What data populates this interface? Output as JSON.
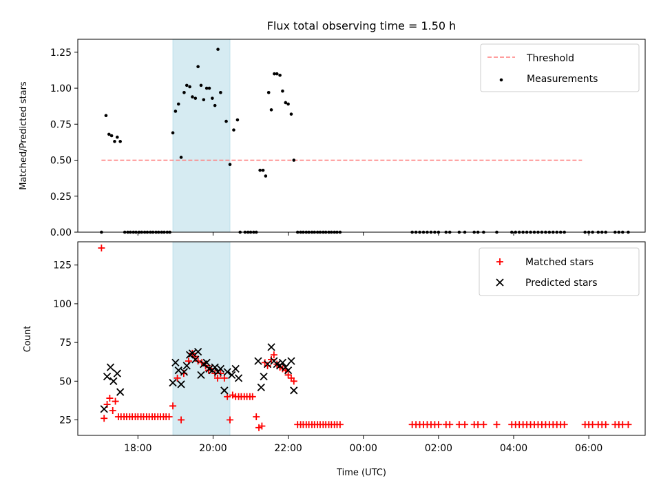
{
  "chart_data": [
    {
      "type": "scatter",
      "title": "Flux total observing time = 1.50 h",
      "xlabel": "",
      "ylabel": "Matched/Predicted stars",
      "x_range_hours": [
        16.4,
        31.5
      ],
      "ylim": [
        0,
        1.34
      ],
      "yticks": [
        0.0,
        0.25,
        0.5,
        0.75,
        1.0,
        1.25
      ],
      "ytick_labels": [
        "0.00",
        "0.25",
        "0.50",
        "0.75",
        "1.00",
        "1.25"
      ],
      "highlight_span_hours": [
        18.93,
        20.45
      ],
      "highlight_color": "#add8e6",
      "threshold": {
        "name": "Threshold",
        "value": 0.5,
        "x_from": 17.03,
        "x_to": 29.82,
        "color": "#ff7f7f",
        "style": "dashed"
      },
      "legend": {
        "placement": "upper right",
        "entries": [
          "Threshold",
          "Measurements"
        ]
      },
      "series": [
        {
          "name": "Measurements",
          "color": "#000000",
          "x": [
            17.03,
            17.15,
            17.23,
            17.3,
            17.38,
            17.45,
            17.53,
            17.65,
            17.73,
            17.8,
            17.88,
            17.95,
            18.03,
            18.1,
            18.18,
            18.25,
            18.33,
            18.4,
            18.48,
            18.55,
            18.63,
            18.7,
            18.78,
            18.85,
            18.93,
            19.0,
            19.08,
            19.15,
            19.23,
            19.3,
            19.38,
            19.45,
            19.53,
            19.6,
            19.68,
            19.75,
            19.83,
            19.9,
            19.98,
            20.05,
            20.13,
            20.2,
            20.35,
            20.45,
            20.55,
            20.65,
            20.72,
            20.85,
            20.93,
            21.0,
            21.08,
            21.15,
            21.25,
            21.33,
            21.4,
            21.48,
            21.55,
            21.63,
            21.7,
            21.78,
            21.85,
            21.93,
            22.0,
            22.08,
            22.15,
            22.25,
            22.33,
            22.4,
            22.48,
            22.55,
            22.63,
            22.7,
            22.78,
            22.85,
            22.93,
            23.0,
            23.08,
            23.15,
            23.23,
            23.3,
            23.38,
            25.3,
            25.4,
            25.5,
            25.6,
            25.7,
            25.8,
            25.9,
            26.0,
            26.2,
            26.3,
            26.55,
            26.7,
            26.95,
            27.05,
            27.2,
            27.55,
            27.95,
            28.05,
            28.15,
            28.25,
            28.35,
            28.45,
            28.55,
            28.65,
            28.75,
            28.85,
            28.95,
            29.05,
            29.15,
            29.25,
            29.35,
            29.9,
            30.0,
            30.1,
            30.25,
            30.35,
            30.45,
            30.7,
            30.8,
            30.9,
            31.05
          ],
          "y": [
            0.0,
            0.81,
            0.68,
            0.67,
            0.63,
            0.66,
            0.63,
            0.0,
            0.0,
            0.0,
            0.0,
            0.0,
            0.0,
            0.0,
            0.0,
            0.0,
            0.0,
            0.0,
            0.0,
            0.0,
            0.0,
            0.0,
            0.0,
            0.0,
            0.69,
            0.84,
            0.89,
            0.52,
            0.97,
            1.02,
            1.01,
            0.94,
            0.93,
            1.15,
            1.02,
            0.92,
            1.0,
            1.0,
            0.93,
            0.88,
            1.27,
            0.97,
            0.77,
            0.47,
            0.71,
            0.78,
            0.0,
            0.0,
            0.0,
            0.0,
            0.0,
            0.0,
            0.43,
            0.43,
            0.39,
            0.97,
            0.85,
            1.1,
            1.1,
            1.09,
            0.98,
            0.9,
            0.89,
            0.82,
            0.5,
            0.0,
            0.0,
            0.0,
            0.0,
            0.0,
            0.0,
            0.0,
            0.0,
            0.0,
            0.0,
            0.0,
            0.0,
            0.0,
            0.0,
            0.0,
            0.0,
            0.0,
            0.0,
            0.0,
            0.0,
            0.0,
            0.0,
            0.0,
            0.0,
            0.0,
            0.0,
            0.0,
            0.0,
            0.0,
            0.0,
            0.0,
            0.0,
            0.0,
            0.0,
            0.0,
            0.0,
            0.0,
            0.0,
            0.0,
            0.0,
            0.0,
            0.0,
            0.0,
            0.0,
            0.0,
            0.0,
            0.0,
            0.0,
            0.0,
            0.0,
            0.0,
            0.0,
            0.0,
            0.0,
            0.0,
            0.0,
            0.0
          ]
        }
      ]
    },
    {
      "type": "scatter",
      "title": "",
      "xlabel": "Time (UTC)",
      "ylabel": "Count",
      "x_range_hours": [
        16.4,
        31.5
      ],
      "ylim": [
        15,
        140
      ],
      "yticks": [
        25,
        50,
        75,
        100,
        125
      ],
      "ytick_labels": [
        "25",
        "50",
        "75",
        "100",
        "125"
      ],
      "xticks_hours": [
        18,
        20,
        22,
        24,
        26,
        28,
        30
      ],
      "xtick_labels": [
        "18:00",
        "20:00",
        "22:00",
        "00:00",
        "02:00",
        "04:00",
        "06:00"
      ],
      "highlight_span_hours": [
        18.93,
        20.45
      ],
      "highlight_color": "#add8e6",
      "legend": {
        "placement": "upper right",
        "entries": [
          "Matched stars",
          "Predicted stars"
        ]
      },
      "series": [
        {
          "name": "Matched stars",
          "marker": "+",
          "color": "#ff0000",
          "x": [
            17.03,
            17.1,
            17.18,
            17.25,
            17.33,
            17.4,
            17.48,
            17.55,
            17.63,
            17.7,
            17.78,
            17.85,
            17.93,
            18.0,
            18.08,
            18.15,
            18.23,
            18.3,
            18.38,
            18.45,
            18.53,
            18.6,
            18.68,
            18.75,
            18.83,
            18.93,
            19.05,
            19.15,
            19.22,
            19.35,
            19.45,
            19.52,
            19.6,
            19.7,
            19.8,
            19.88,
            19.95,
            20.05,
            20.12,
            20.2,
            20.3,
            20.38,
            20.45,
            20.52,
            20.6,
            20.68,
            20.75,
            20.83,
            20.9,
            20.98,
            21.05,
            21.15,
            21.22,
            21.3,
            21.38,
            21.45,
            21.55,
            21.62,
            21.7,
            21.78,
            21.85,
            21.93,
            22.0,
            22.08,
            22.15,
            22.25,
            22.33,
            22.4,
            22.48,
            22.55,
            22.63,
            22.7,
            22.78,
            22.85,
            22.93,
            23.0,
            23.08,
            23.15,
            23.23,
            23.3,
            23.38,
            25.3,
            25.4,
            25.5,
            25.6,
            25.7,
            25.8,
            25.9,
            26.0,
            26.2,
            26.3,
            26.55,
            26.7,
            26.95,
            27.05,
            27.2,
            27.55,
            27.95,
            28.05,
            28.15,
            28.25,
            28.35,
            28.45,
            28.55,
            28.65,
            28.75,
            28.85,
            28.95,
            29.05,
            29.15,
            29.25,
            29.35,
            29.9,
            30.0,
            30.1,
            30.25,
            30.35,
            30.45,
            30.7,
            30.8,
            30.9,
            31.05
          ],
          "y": [
            136,
            26,
            35,
            39,
            31,
            37,
            27,
            27,
            27,
            27,
            27,
            27,
            27,
            27,
            27,
            27,
            27,
            27,
            27,
            27,
            27,
            27,
            27,
            27,
            27,
            34,
            52,
            25,
            55,
            63,
            68,
            66,
            63,
            62,
            60,
            57,
            58,
            55,
            52,
            55,
            52,
            40,
            25,
            41,
            40,
            40,
            40,
            40,
            40,
            40,
            40,
            27,
            20,
            21,
            62,
            60,
            64,
            67,
            61,
            59,
            58,
            57,
            54,
            52,
            50,
            22,
            22,
            22,
            22,
            22,
            22,
            22,
            22,
            22,
            22,
            22,
            22,
            22,
            22,
            22,
            22,
            22,
            22,
            22,
            22,
            22,
            22,
            22,
            22,
            22,
            22,
            22,
            22,
            22,
            22,
            22,
            22,
            22,
            22,
            22,
            22,
            22,
            22,
            22,
            22,
            22,
            22,
            22,
            22,
            22,
            22,
            22,
            22,
            22,
            22,
            22,
            22,
            22,
            22,
            22,
            22,
            22
          ]
        },
        {
          "name": "Predicted stars",
          "marker": "x",
          "color": "#000000",
          "x": [
            17.1,
            17.18,
            17.27,
            17.35,
            17.45,
            17.53,
            18.93,
            19.0,
            19.08,
            19.15,
            19.23,
            19.3,
            19.38,
            19.45,
            19.53,
            19.6,
            19.68,
            19.75,
            19.83,
            19.9,
            19.98,
            20.05,
            20.13,
            20.2,
            20.3,
            20.38,
            20.5,
            20.6,
            20.68,
            21.2,
            21.28,
            21.35,
            21.45,
            21.55,
            21.62,
            21.7,
            21.78,
            21.85,
            21.93,
            22.0,
            22.08,
            22.15
          ],
          "y": [
            32,
            53,
            59,
            50,
            55,
            43,
            49,
            62,
            57,
            48,
            56,
            60,
            67,
            68,
            64,
            69,
            54,
            61,
            62,
            58,
            57,
            59,
            56,
            58,
            44,
            56,
            54,
            58,
            52,
            63,
            46,
            53,
            61,
            72,
            63,
            61,
            60,
            62,
            59,
            57,
            63,
            44
          ]
        }
      ]
    }
  ]
}
